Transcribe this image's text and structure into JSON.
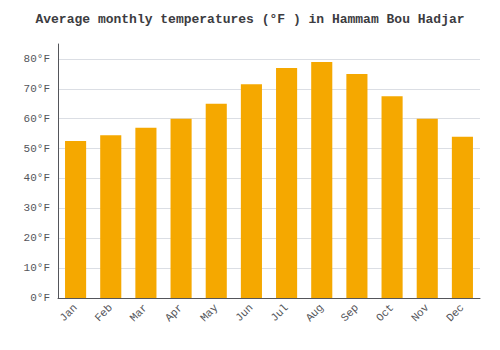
{
  "chart_data": {
    "type": "bar",
    "title": "Average monthly temperatures (°F ) in Hammam Bou Hadjar",
    "categories": [
      "Jan",
      "Feb",
      "Mar",
      "Apr",
      "May",
      "Jun",
      "Jul",
      "Aug",
      "Sep",
      "Oct",
      "Nov",
      "Dec"
    ],
    "values": [
      52.5,
      54.5,
      57.0,
      60.0,
      65.0,
      71.5,
      77.0,
      79.0,
      75.0,
      67.5,
      60.0,
      54.0
    ],
    "color": "#F5A800",
    "ylim": [
      0,
      85
    ],
    "yticks": [
      {
        "value": 0,
        "label": "0°F"
      },
      {
        "value": 10,
        "label": "10°F"
      },
      {
        "value": 20,
        "label": "20°F"
      },
      {
        "value": 30,
        "label": "30°F"
      },
      {
        "value": 40,
        "label": "40°F"
      },
      {
        "value": 50,
        "label": "50°F"
      },
      {
        "value": 60,
        "label": "60°F"
      },
      {
        "value": 70,
        "label": "70°F"
      },
      {
        "value": 80,
        "label": "80°F"
      }
    ],
    "grid": true
  }
}
